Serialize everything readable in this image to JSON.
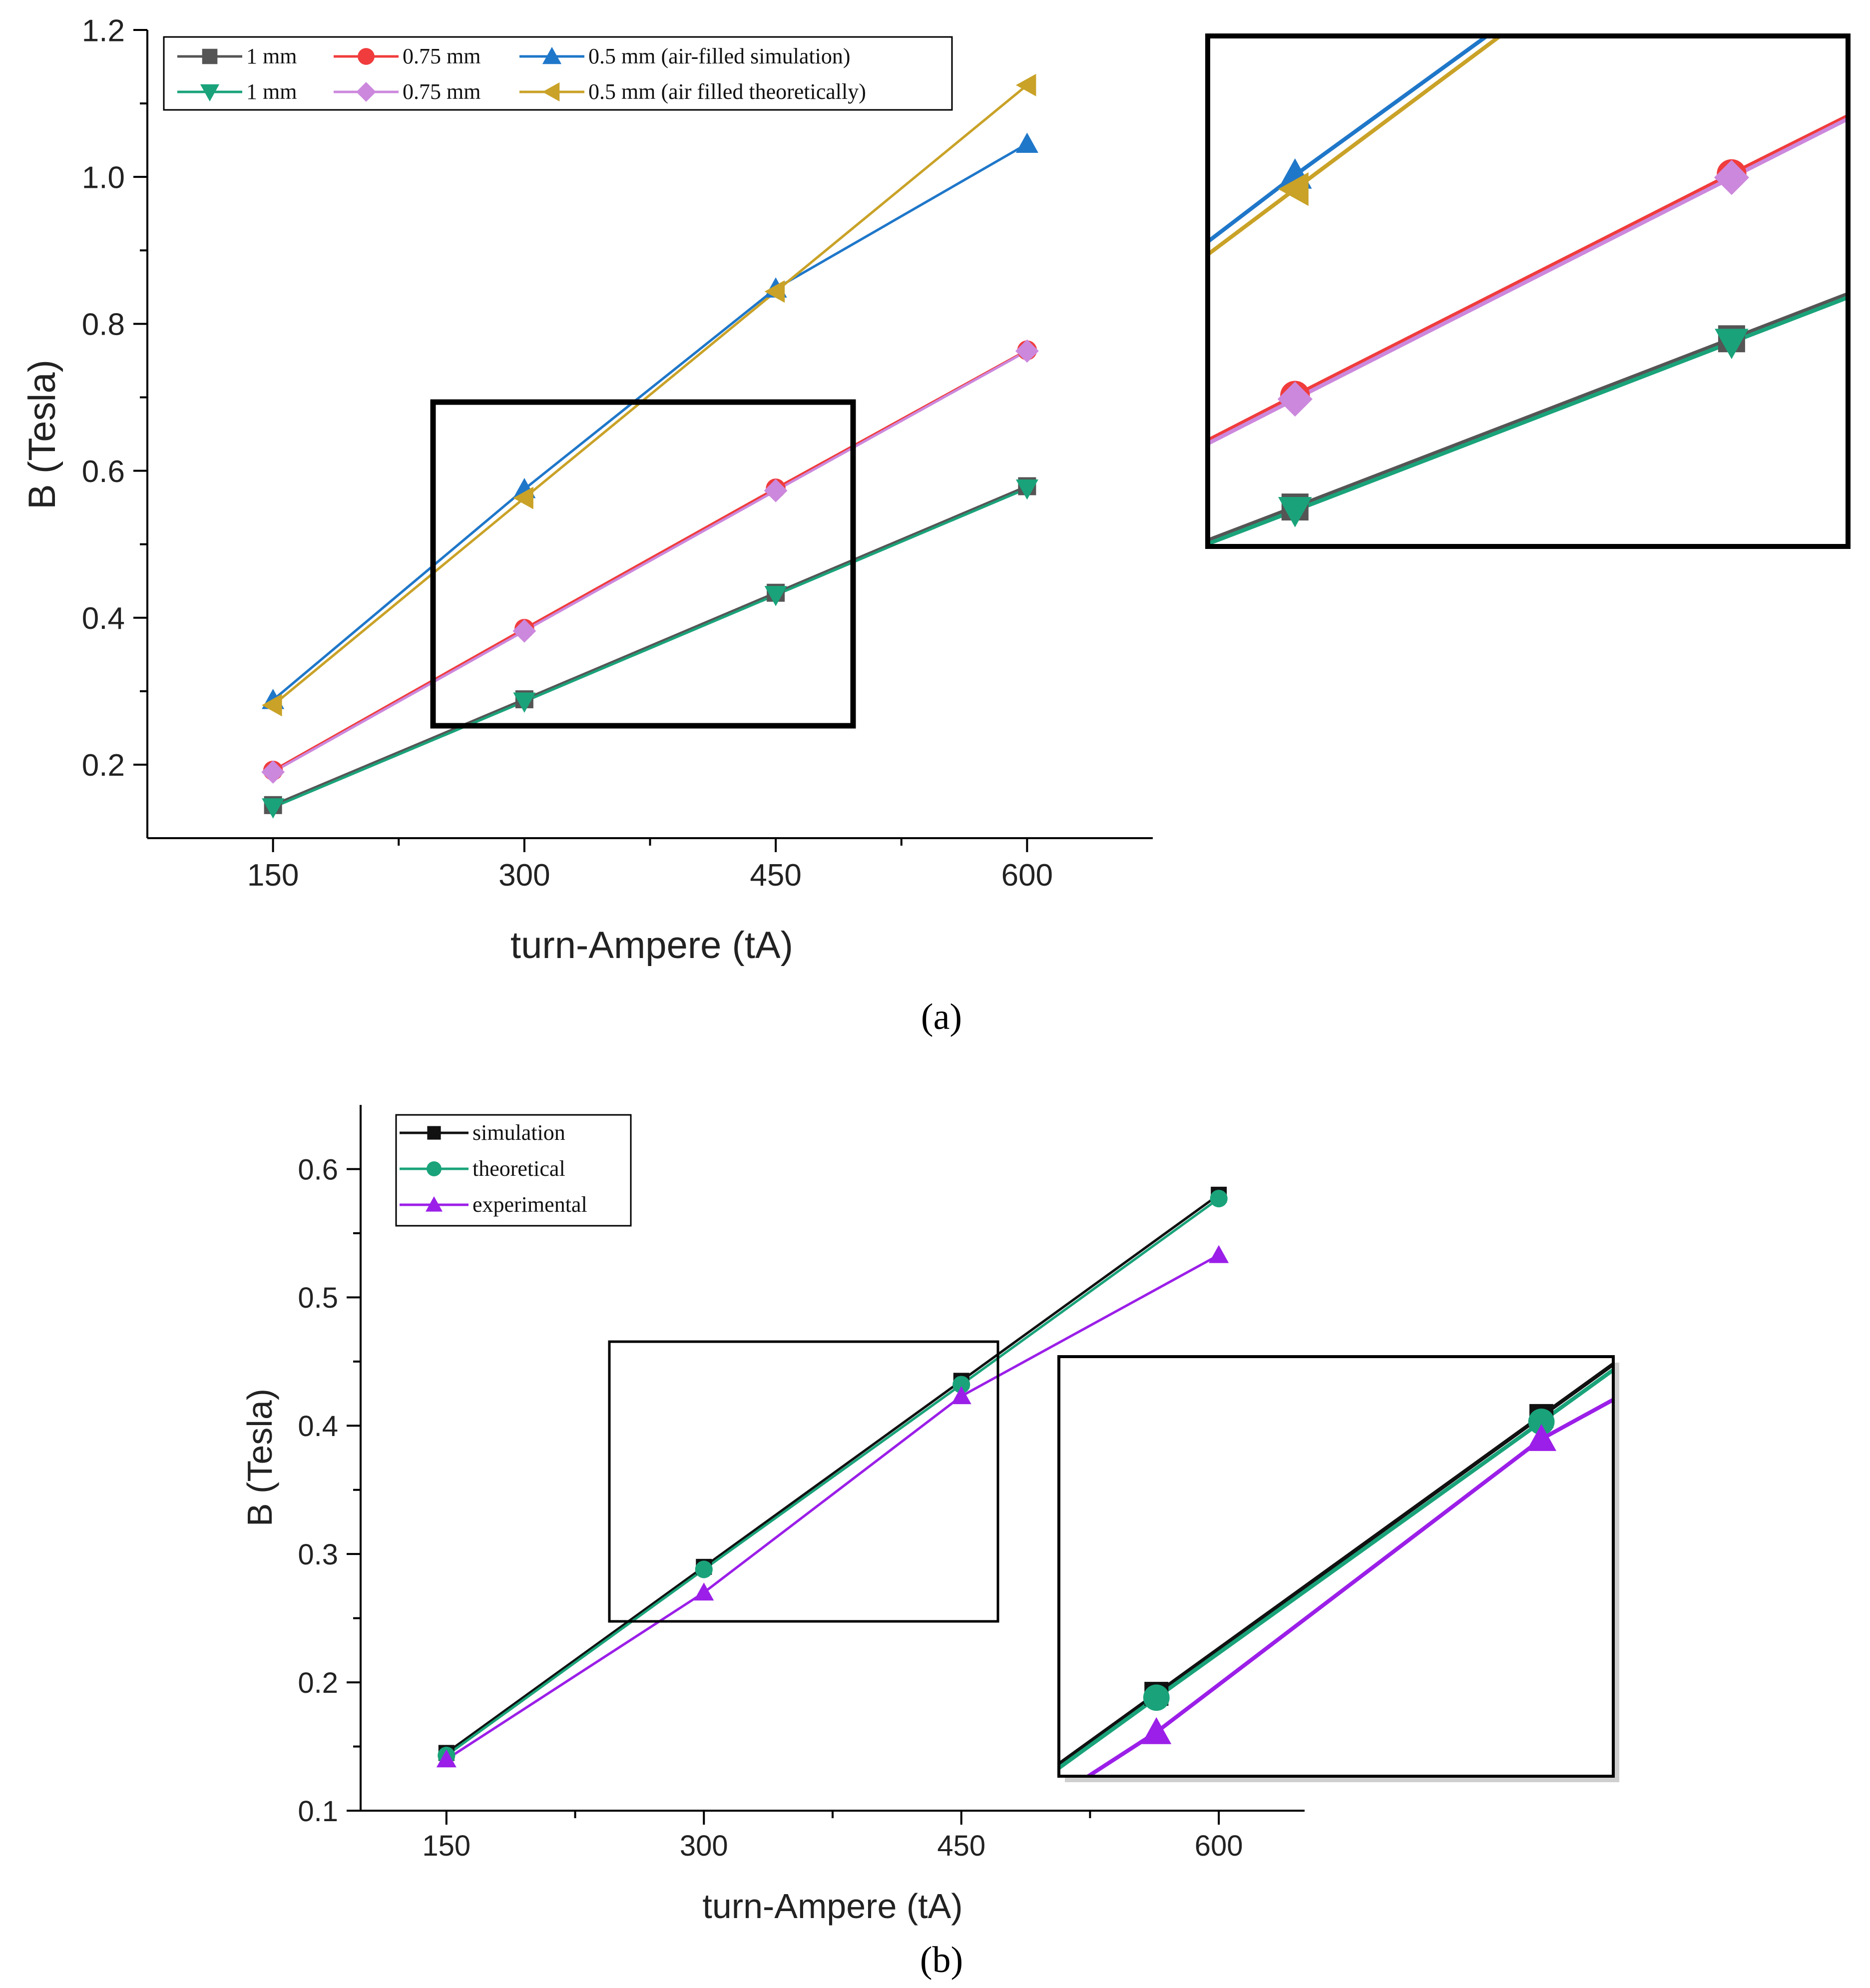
{
  "chart_data": [
    {
      "panel": "(a)",
      "type": "line",
      "title": "",
      "xlabel": "turn-Ampere (tA)",
      "ylabel": "B (Tesla)",
      "xlim": [
        75,
        675
      ],
      "ylim": [
        0.1,
        1.2
      ],
      "xticks": [
        150,
        300,
        450,
        600
      ],
      "yticks": [
        0.2,
        0.4,
        0.6,
        0.8,
        1.0,
        1.2
      ],
      "ytick_labels": [
        "0.2",
        "0.4",
        "0.6",
        "0.8",
        "1.0",
        "1.2"
      ],
      "grid": false,
      "legend_position": "top-left",
      "x": [
        150,
        300,
        450,
        600
      ],
      "series": [
        {
          "name": "1 mm",
          "color": "#555555",
          "marker": "square",
          "values": [
            0.145,
            0.289,
            0.434,
            0.579
          ]
        },
        {
          "name": "0.75 mm",
          "color": "#f03c3c",
          "marker": "circle",
          "values": [
            0.192,
            0.385,
            0.576,
            0.764
          ]
        },
        {
          "name": "0.5 mm  (air-filled simulation)",
          "color": "#1f77c9",
          "marker": "triangle-up",
          "values": [
            0.288,
            0.575,
            0.848,
            1.045
          ]
        },
        {
          "name": "1 mm",
          "color": "#1aa37a",
          "marker": "triangle-down",
          "values": [
            0.142,
            0.286,
            0.431,
            0.576
          ]
        },
        {
          "name": "0.75 mm",
          "color": "#cc88dd",
          "marker": "diamond",
          "values": [
            0.19,
            0.382,
            0.573,
            0.763
          ]
        },
        {
          "name": "0.5 mm  (air filled theoretically)",
          "color": "#c9a227",
          "marker": "triangle-left",
          "values": [
            0.281,
            0.563,
            0.844,
            1.125
          ]
        }
      ],
      "inset": {
        "zoom_x": [
          270,
          490
        ],
        "zoom_y": [
          0.255,
          0.695
        ]
      }
    },
    {
      "panel": "(b)",
      "type": "line",
      "title": "",
      "xlabel": "turn-Ampere (tA)",
      "ylabel": "B (Tesla)",
      "xlim": [
        100,
        650
      ],
      "ylim": [
        0.1,
        0.65
      ],
      "xticks": [
        150,
        300,
        450,
        600
      ],
      "yticks": [
        0.1,
        0.2,
        0.3,
        0.4,
        0.5,
        0.6
      ],
      "ytick_labels": [
        "0.1",
        "0.2",
        "0.3",
        "0.4",
        "0.5",
        "0.6"
      ],
      "grid": false,
      "legend_position": "top-left",
      "x": [
        150,
        300,
        450,
        600
      ],
      "series": [
        {
          "name": "simulation",
          "color": "#111111",
          "marker": "square",
          "values": [
            0.145,
            0.29,
            0.435,
            0.58
          ]
        },
        {
          "name": "theoretical",
          "color": "#1aa37a",
          "marker": "circle",
          "values": [
            0.143,
            0.288,
            0.432,
            0.577
          ]
        },
        {
          "name": "experimental",
          "color": "#9b1fe8",
          "marker": "triangle-up",
          "values": [
            0.14,
            0.27,
            0.423,
            0.533
          ]
        }
      ],
      "inset": {
        "zoom_x": [
          262,
          478
        ],
        "zoom_y": [
          0.247,
          0.466
        ]
      }
    }
  ],
  "captions": {
    "a": "(a)",
    "b": "(b)"
  }
}
